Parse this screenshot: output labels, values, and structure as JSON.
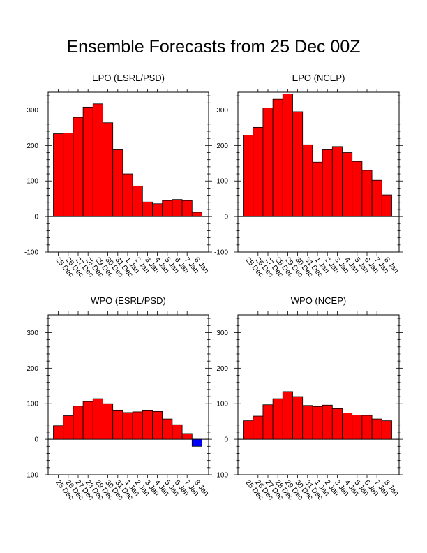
{
  "figure": {
    "title": "Ensemble Forecasts from 25 Dec 00Z"
  },
  "colors": {
    "positive": "#ff0000",
    "negative": "#0000ff",
    "axis": "#000000",
    "background": "#ffffff"
  },
  "chart_data": [
    {
      "type": "bar",
      "title": "EPO (ESRL/PSD)",
      "categories": [
        "25 Dec",
        "26 Dec",
        "27 Dec",
        "28 Dec",
        "29 Dec",
        "30 Dec",
        "31 Dec",
        "1 Jan",
        "2 Jan",
        "3 Jan",
        "4 Jan",
        "5 Jan",
        "6 Jan",
        "7 Jan",
        "8 Jan"
      ],
      "values": [
        233,
        235,
        279,
        308,
        317,
        264,
        188,
        120,
        86,
        41,
        36,
        45,
        48,
        45,
        12
      ],
      "ylim": [
        -100,
        350
      ],
      "yticks": [
        -100,
        0,
        100,
        200,
        300
      ],
      "xlabel": "",
      "ylabel": "",
      "grid": false
    },
    {
      "type": "bar",
      "title": "EPO (NCEP)",
      "categories": [
        "25 Dec",
        "26 Dec",
        "27 Dec",
        "28 Dec",
        "29 Dec",
        "30 Dec",
        "31 Dec",
        "1 Jan",
        "2 Jan",
        "3 Jan",
        "4 Jan",
        "5 Jan",
        "6 Jan",
        "7 Jan",
        "8 Jan"
      ],
      "values": [
        229,
        251,
        306,
        330,
        345,
        295,
        202,
        153,
        188,
        197,
        180,
        155,
        130,
        102,
        61
      ],
      "ylim": [
        -100,
        350
      ],
      "yticks": [
        -100,
        0,
        100,
        200,
        300
      ],
      "xlabel": "",
      "ylabel": "",
      "grid": false
    },
    {
      "type": "bar",
      "title": "WPO (ESRL/PSD)",
      "categories": [
        "25 Dec",
        "26 Dec",
        "27 Dec",
        "28 Dec",
        "29 Dec",
        "30 Dec",
        "31 Dec",
        "1 Jan",
        "2 Jan",
        "3 Jan",
        "4 Jan",
        "5 Jan",
        "6 Jan",
        "7 Jan",
        "8 Jan"
      ],
      "values": [
        38,
        66,
        93,
        106,
        114,
        100,
        82,
        75,
        77,
        82,
        78,
        57,
        41,
        16,
        -20
      ],
      "ylim": [
        -100,
        350
      ],
      "yticks": [
        -100,
        0,
        100,
        200,
        300
      ],
      "xlabel": "",
      "ylabel": "",
      "grid": false
    },
    {
      "type": "bar",
      "title": "WPO (NCEP)",
      "categories": [
        "25 Dec",
        "26 Dec",
        "27 Dec",
        "28 Dec",
        "29 Dec",
        "30 Dec",
        "31 Dec",
        "1 Jan",
        "2 Jan",
        "3 Jan",
        "4 Jan",
        "5 Jan",
        "6 Jan",
        "7 Jan",
        "8 Jan"
      ],
      "values": [
        52,
        65,
        97,
        114,
        134,
        120,
        95,
        92,
        96,
        86,
        74,
        68,
        67,
        57,
        52
      ],
      "ylim": [
        -100,
        350
      ],
      "yticks": [
        -100,
        0,
        100,
        200,
        300
      ],
      "xlabel": "",
      "ylabel": "",
      "grid": false
    }
  ]
}
